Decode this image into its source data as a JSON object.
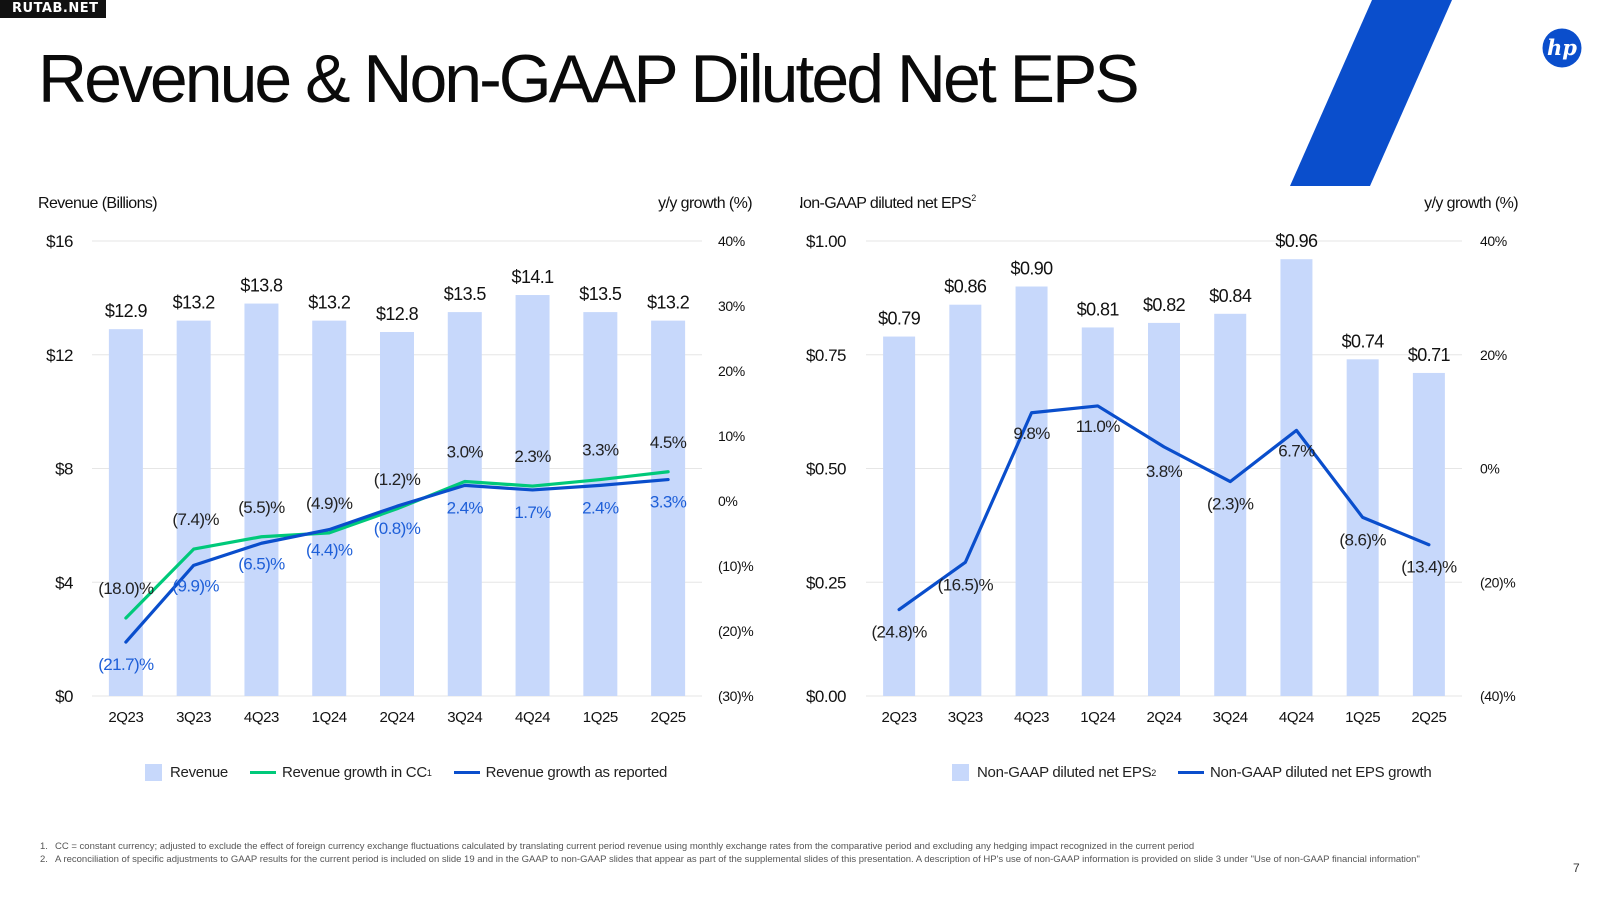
{
  "watermark": "RUTAB.NET",
  "page_title": "Revenue & Non-GAAP Diluted Net EPS",
  "brand_logo": "hp",
  "colors": {
    "bar": "#c7d8fb",
    "cc_growth": "#00c97a",
    "reported_growth": "#0a4ecc",
    "eps_growth": "#0a4ecc",
    "stripe": "#0a4ecc",
    "grid": "#e6e6e6",
    "growth_label_blue": "#1e5fd8"
  },
  "chart_data": [
    {
      "type": "bar",
      "title": "",
      "left_axis_title": "Revenue (Billions)",
      "right_axis_title": "y/y growth (%)",
      "categories": [
        "2Q23",
        "3Q23",
        "4Q23",
        "1Q24",
        "2Q24",
        "3Q24",
        "4Q24",
        "1Q25",
        "2Q25"
      ],
      "ylim": [
        0,
        16
      ],
      "y2lim": [
        -30,
        40
      ],
      "yticks": [
        0,
        4,
        8,
        12,
        16
      ],
      "ytick_labels": [
        "$0",
        "$4",
        "$8",
        "$12",
        "$16"
      ],
      "y2ticks": [
        -30,
        -20,
        -10,
        0,
        10,
        20,
        30,
        40
      ],
      "y2tick_labels": [
        "(30)%",
        "(20)%",
        "(10)%",
        "0%",
        "10%",
        "20%",
        "30%",
        "40%"
      ],
      "grid": true,
      "series": [
        {
          "name": "Revenue",
          "kind": "bar",
          "values": [
            12.9,
            13.2,
            13.8,
            13.2,
            12.8,
            13.5,
            14.1,
            13.5,
            13.2
          ],
          "labels": [
            "$12.9",
            "$13.2",
            "$13.8",
            "$13.2",
            "$12.8",
            "$13.5",
            "$14.1",
            "$13.5",
            "$13.2"
          ]
        },
        {
          "name": "Revenue growth in CC",
          "kind": "line",
          "axis": "right",
          "values": [
            -18.0,
            -7.4,
            -5.5,
            -4.9,
            -1.2,
            3.0,
            2.3,
            3.3,
            4.5
          ],
          "labels": [
            "(18.0)%",
            "(7.4)%",
            "(5.5)%",
            "(4.9)%",
            "(1.2)%",
            "3.0%",
            "2.3%",
            "3.3%",
            "4.5%"
          ]
        },
        {
          "name": "Revenue growth as reported",
          "kind": "line",
          "axis": "right",
          "values": [
            -21.7,
            -9.9,
            -6.5,
            -4.4,
            -0.8,
            2.4,
            1.7,
            2.4,
            3.3
          ],
          "labels": [
            "(21.7)%",
            "(9.9)%",
            "(6.5)%",
            "(4.4)%",
            "(0.8)%",
            "2.4%",
            "1.7%",
            "2.4%",
            "3.3%"
          ]
        }
      ],
      "legend": [
        {
          "label": "Revenue",
          "sup": ""
        },
        {
          "label": "Revenue growth in CC",
          "sup": "1"
        },
        {
          "label": "Revenue growth as reported",
          "sup": ""
        }
      ]
    },
    {
      "type": "bar",
      "title": "",
      "left_axis_title": "Non-GAAP diluted net EPS",
      "left_axis_sup": "2",
      "right_axis_title": "y/y growth (%)",
      "categories": [
        "2Q23",
        "3Q23",
        "4Q23",
        "1Q24",
        "2Q24",
        "3Q24",
        "4Q24",
        "1Q25",
        "2Q25"
      ],
      "ylim": [
        0,
        1.0
      ],
      "y2lim": [
        -40,
        40
      ],
      "yticks": [
        0,
        0.25,
        0.5,
        0.75,
        1.0
      ],
      "ytick_labels": [
        "$0.00",
        "$0.25",
        "$0.50",
        "$0.75",
        "$1.00"
      ],
      "y2ticks": [
        -40,
        -20,
        0,
        20,
        40
      ],
      "y2tick_labels": [
        "(40)%",
        "(20)%",
        "0%",
        "20%",
        "40%"
      ],
      "grid": true,
      "series": [
        {
          "name": "Non-GAAP diluted net EPS",
          "kind": "bar",
          "values": [
            0.79,
            0.86,
            0.9,
            0.81,
            0.82,
            0.84,
            0.96,
            0.74,
            0.71
          ],
          "labels": [
            "$0.79",
            "$0.86",
            "$0.90",
            "$0.81",
            "$0.82",
            "$0.84",
            "$0.96",
            "$0.74",
            "$0.71"
          ]
        },
        {
          "name": "Non-GAAP diluted net EPS growth",
          "kind": "line",
          "axis": "right",
          "values": [
            -24.8,
            -16.5,
            9.8,
            11.0,
            3.8,
            -2.3,
            6.7,
            -8.6,
            -13.4
          ],
          "labels": [
            "(24.8)%",
            "(16.5)%",
            "9.8%",
            "11.0%",
            "3.8%",
            "(2.3)%",
            "6.7%",
            "(8.6)%",
            "(13.4)%"
          ]
        }
      ],
      "legend": [
        {
          "label": "Non-GAAP diluted net EPS",
          "sup": "2"
        },
        {
          "label": "Non-GAAP diluted net EPS growth",
          "sup": ""
        }
      ]
    }
  ],
  "footnotes": [
    {
      "num": "1.",
      "text": "CC = constant currency; adjusted to exclude the effect of foreign currency exchange fluctuations calculated by translating current period revenue using monthly exchange rates from the comparative period and excluding any hedging impact recognized in the current period"
    },
    {
      "num": "2.",
      "text": "A reconciliation of specific adjustments to GAAP results for the current period is included on slide 19 and in the GAAP to non-GAAP slides that appear as part of the supplemental slides of this presentation. A description of HP's use of non-GAAP information is provided on slide 3 under \"Use of non-GAAP financial information\""
    }
  ],
  "page_number": "7"
}
